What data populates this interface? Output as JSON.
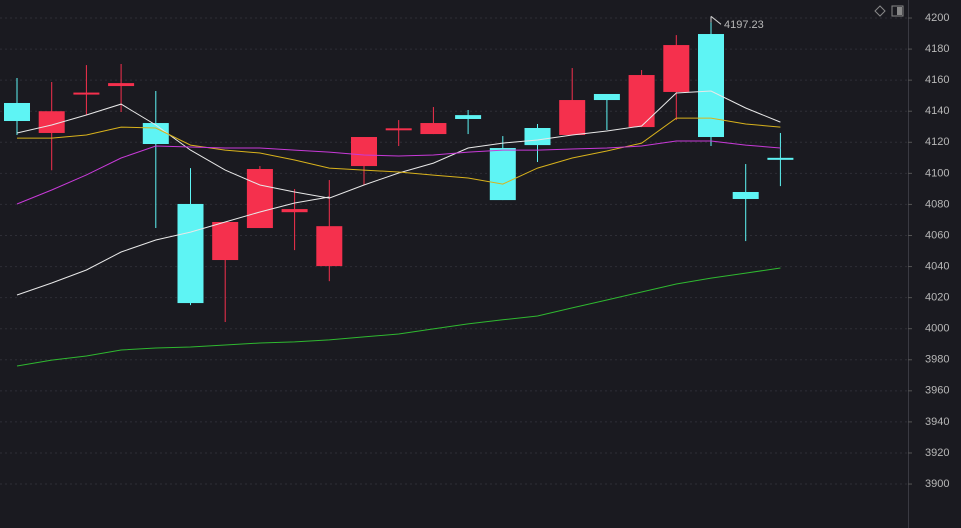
{
  "chart_data": {
    "type": "candlestick",
    "categories": [
      null,
      null,
      null,
      null,
      null,
      null,
      null,
      null,
      null,
      null,
      null,
      null,
      null,
      null,
      null,
      null,
      null,
      null,
      null,
      null,
      null,
      null,
      null
    ],
    "open": [
      4145.3,
      4126.0,
      4151.5,
      4156.2,
      4132.4,
      4080.3,
      4044.2,
      4064.8,
      4075.0,
      4040.3,
      4104.7,
      4128.2,
      4125.3,
      4137.5,
      4116.3,
      4129.2,
      4124.7,
      4151.1,
      4129.8,
      4152.4,
      4189.7,
      4088.0,
      4110.0
    ],
    "high": [
      4161.4,
      4158.8,
      4169.7,
      4170.4,
      4153.0,
      4103.4,
      4068.7,
      4104.7,
      4089.9,
      4095.7,
      4123.4,
      4134.3,
      4142.7,
      4140.8,
      4124.0,
      4131.8,
      4167.8,
      4151.1,
      4166.5,
      4189.0,
      4197.23,
      4106.0,
      4126.0
    ],
    "low": [
      4124.7,
      4102.0,
      4137.5,
      4139.5,
      4064.8,
      4015.2,
      4004.3,
      4064.8,
      4050.6,
      4030.6,
      4092.5,
      4117.6,
      4125.3,
      4125.3,
      4082.8,
      4107.3,
      4124.7,
      4127.9,
      4129.8,
      4134.3,
      4117.6,
      4056.4,
      4091.8
    ],
    "close": [
      4133.7,
      4140.0,
      4152.0,
      4158.1,
      4118.9,
      4016.5,
      4068.7,
      4102.8,
      4077.0,
      4066.0,
      4123.4,
      4129.0,
      4132.4,
      4135.0,
      4082.8,
      4118.2,
      4147.2,
      4147.2,
      4163.3,
      4182.6,
      4123.4,
      4083.5,
      4109.8
    ],
    "up_color": "#f5304d",
    "down_color": "#5ef4f4",
    "high_label": 4197.23,
    "ma_lines": [
      {
        "color": "#e8e8e8",
        "values": [
          4126.0,
          4131.1,
          4137.6,
          4144.6,
          4131.1,
          4115.0,
          4102.1,
          4092.5,
          4088.0,
          4084.1,
          4092.5,
          4100.2,
          4106.6,
          4116.3,
          4119.5,
          4121.5,
          4124.7,
          4127.3,
          4130.5,
          4151.7,
          4153.0,
          4142.1,
          4133.0
        ]
      },
      {
        "color": "#e8e8e8",
        "values": [
          4021.7,
          4029.4,
          4037.8,
          4049.4,
          4057.1,
          4062.2,
          4068.7,
          4075.1,
          4080.9,
          4084.8,
          null,
          null,
          null,
          null,
          null,
          null,
          null,
          null,
          null,
          null,
          null,
          null,
          null
        ]
      },
      {
        "color": "#d8b21c",
        "values": [
          4122.7,
          4122.7,
          4124.7,
          4129.8,
          4129.2,
          4118.2,
          4115.0,
          4113.1,
          4108.6,
          4103.4,
          4102.1,
          4100.9,
          4098.9,
          4097.0,
          4093.1,
          4103.4,
          4109.9,
          4114.4,
          4119.5,
          4135.6,
          4135.6,
          4131.8,
          4129.8
        ]
      },
      {
        "color": "#c83ad8",
        "values": [
          4080.3,
          4089.3,
          4099.0,
          4109.9,
          4117.6,
          4117.0,
          4116.3,
          4116.3,
          4115.0,
          4113.7,
          4111.8,
          4111.2,
          4111.8,
          4113.7,
          4115.0,
          4115.0,
          4115.7,
          4116.3,
          4117.6,
          4120.8,
          4120.8,
          4118.2,
          4116.3
        ]
      },
      {
        "color": "#2fb830",
        "values": [
          3976.0,
          3979.8,
          3982.4,
          3986.3,
          3987.6,
          3988.2,
          3989.5,
          3990.8,
          3991.5,
          3992.8,
          3994.7,
          3996.6,
          3999.9,
          4003.1,
          4005.7,
          4008.2,
          4013.4,
          4018.5,
          4023.6,
          4028.8,
          4032.6,
          4035.8,
          4039.1
        ]
      }
    ],
    "ylim": [
      3871.7,
      4211.6
    ],
    "yticks": [
      3900,
      3920,
      3940,
      3960,
      3980,
      4000,
      4020,
      4040,
      4060,
      4080,
      4100,
      4120,
      4140,
      4160,
      4180,
      4200
    ],
    "grid": true
  }
}
